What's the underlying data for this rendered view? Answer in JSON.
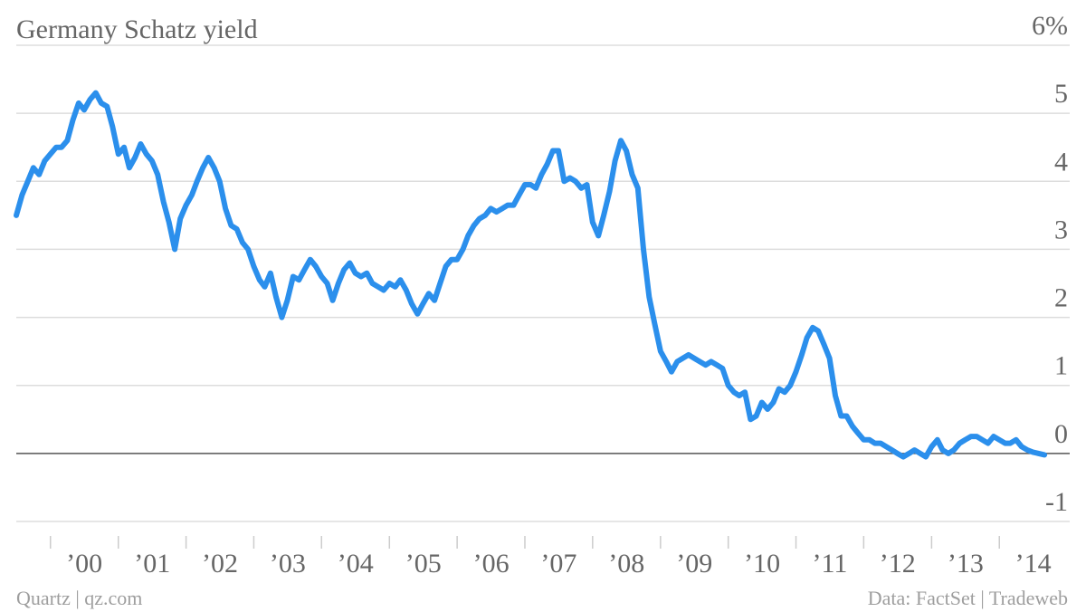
{
  "chart_data": {
    "type": "line",
    "title": "Germany Schatz yield",
    "y_unit_label": "6%",
    "y_ticks": [
      {
        "value": 6,
        "label": "6%"
      },
      {
        "value": 5,
        "label": "5"
      },
      {
        "value": 4,
        "label": "4"
      },
      {
        "value": 3,
        "label": "3"
      },
      {
        "value": 2,
        "label": "2"
      },
      {
        "value": 1,
        "label": "1"
      },
      {
        "value": 0,
        "label": "0"
      },
      {
        "value": -1,
        "label": "-1"
      }
    ],
    "ylim": [
      -1,
      6
    ],
    "xlim": [
      "1999-07-01",
      "2014-09-30"
    ],
    "x_ticks": [
      {
        "date": "2000-01-01",
        "label": "’00"
      },
      {
        "date": "2001-01-01",
        "label": "’01"
      },
      {
        "date": "2002-01-01",
        "label": "’02"
      },
      {
        "date": "2003-01-01",
        "label": "’03"
      },
      {
        "date": "2004-01-01",
        "label": "’04"
      },
      {
        "date": "2005-01-01",
        "label": "’05"
      },
      {
        "date": "2006-01-01",
        "label": "’06"
      },
      {
        "date": "2007-01-01",
        "label": "’07"
      },
      {
        "date": "2008-01-01",
        "label": "’08"
      },
      {
        "date": "2009-01-01",
        "label": "’09"
      },
      {
        "date": "2010-01-01",
        "label": "’10"
      },
      {
        "date": "2011-01-01",
        "label": "’11"
      },
      {
        "date": "2012-01-01",
        "label": "’12"
      },
      {
        "date": "2013-01-01",
        "label": "’13"
      },
      {
        "date": "2014-01-01",
        "label": "’14"
      }
    ],
    "grid": true,
    "series": [
      {
        "color": "#2b8fec",
        "points": [
          [
            "1999-07-01",
            3.5
          ],
          [
            "1999-08-01",
            3.8
          ],
          [
            "1999-09-01",
            4.0
          ],
          [
            "1999-10-01",
            4.2
          ],
          [
            "1999-11-01",
            4.1
          ],
          [
            "1999-12-01",
            4.3
          ],
          [
            "2000-01-01",
            4.4
          ],
          [
            "2000-02-01",
            4.5
          ],
          [
            "2000-03-01",
            4.5
          ],
          [
            "2000-04-01",
            4.6
          ],
          [
            "2000-05-01",
            4.9
          ],
          [
            "2000-06-01",
            5.15
          ],
          [
            "2000-07-01",
            5.05
          ],
          [
            "2000-08-01",
            5.2
          ],
          [
            "2000-09-01",
            5.3
          ],
          [
            "2000-10-01",
            5.15
          ],
          [
            "2000-11-01",
            5.1
          ],
          [
            "2000-12-01",
            4.8
          ],
          [
            "2001-01-01",
            4.4
          ],
          [
            "2001-02-01",
            4.5
          ],
          [
            "2001-03-01",
            4.2
          ],
          [
            "2001-04-01",
            4.35
          ],
          [
            "2001-05-01",
            4.55
          ],
          [
            "2001-06-01",
            4.4
          ],
          [
            "2001-07-01",
            4.3
          ],
          [
            "2001-08-01",
            4.1
          ],
          [
            "2001-09-01",
            3.7
          ],
          [
            "2001-10-01",
            3.4
          ],
          [
            "2001-11-01",
            3.0
          ],
          [
            "2001-12-01",
            3.45
          ],
          [
            "2002-01-01",
            3.65
          ],
          [
            "2002-02-01",
            3.8
          ],
          [
            "2002-03-01",
            4.0
          ],
          [
            "2002-04-01",
            4.2
          ],
          [
            "2002-05-01",
            4.35
          ],
          [
            "2002-06-01",
            4.2
          ],
          [
            "2002-07-01",
            4.0
          ],
          [
            "2002-08-01",
            3.6
          ],
          [
            "2002-09-01",
            3.35
          ],
          [
            "2002-10-01",
            3.3
          ],
          [
            "2002-11-01",
            3.1
          ],
          [
            "2002-12-01",
            3.0
          ],
          [
            "2003-01-01",
            2.75
          ],
          [
            "2003-02-01",
            2.55
          ],
          [
            "2003-03-01",
            2.45
          ],
          [
            "2003-04-01",
            2.65
          ],
          [
            "2003-05-01",
            2.3
          ],
          [
            "2003-06-01",
            2.0
          ],
          [
            "2003-07-01",
            2.25
          ],
          [
            "2003-08-01",
            2.6
          ],
          [
            "2003-09-01",
            2.55
          ],
          [
            "2003-10-01",
            2.7
          ],
          [
            "2003-11-01",
            2.85
          ],
          [
            "2003-12-01",
            2.75
          ],
          [
            "2004-01-01",
            2.6
          ],
          [
            "2004-02-01",
            2.5
          ],
          [
            "2004-03-01",
            2.25
          ],
          [
            "2004-04-01",
            2.5
          ],
          [
            "2004-05-01",
            2.7
          ],
          [
            "2004-06-01",
            2.8
          ],
          [
            "2004-07-01",
            2.65
          ],
          [
            "2004-08-01",
            2.6
          ],
          [
            "2004-09-01",
            2.65
          ],
          [
            "2004-10-01",
            2.5
          ],
          [
            "2004-11-01",
            2.45
          ],
          [
            "2004-12-01",
            2.4
          ],
          [
            "2005-01-01",
            2.5
          ],
          [
            "2005-02-01",
            2.45
          ],
          [
            "2005-03-01",
            2.55
          ],
          [
            "2005-04-01",
            2.4
          ],
          [
            "2005-05-01",
            2.2
          ],
          [
            "2005-06-01",
            2.05
          ],
          [
            "2005-07-01",
            2.2
          ],
          [
            "2005-08-01",
            2.35
          ],
          [
            "2005-09-01",
            2.25
          ],
          [
            "2005-10-01",
            2.5
          ],
          [
            "2005-11-01",
            2.75
          ],
          [
            "2005-12-01",
            2.85
          ],
          [
            "2006-01-01",
            2.85
          ],
          [
            "2006-02-01",
            3.0
          ],
          [
            "2006-03-01",
            3.2
          ],
          [
            "2006-04-01",
            3.35
          ],
          [
            "2006-05-01",
            3.45
          ],
          [
            "2006-06-01",
            3.5
          ],
          [
            "2006-07-01",
            3.6
          ],
          [
            "2006-08-01",
            3.55
          ],
          [
            "2006-09-01",
            3.6
          ],
          [
            "2006-10-01",
            3.65
          ],
          [
            "2006-11-01",
            3.65
          ],
          [
            "2006-12-01",
            3.8
          ],
          [
            "2007-01-01",
            3.95
          ],
          [
            "2007-02-01",
            3.95
          ],
          [
            "2007-03-01",
            3.9
          ],
          [
            "2007-04-01",
            4.1
          ],
          [
            "2007-05-01",
            4.25
          ],
          [
            "2007-06-01",
            4.45
          ],
          [
            "2007-07-01",
            4.45
          ],
          [
            "2007-08-01",
            4.0
          ],
          [
            "2007-09-01",
            4.05
          ],
          [
            "2007-10-01",
            4.0
          ],
          [
            "2007-11-01",
            3.9
          ],
          [
            "2007-12-01",
            3.95
          ],
          [
            "2008-01-01",
            3.4
          ],
          [
            "2008-02-01",
            3.2
          ],
          [
            "2008-03-01",
            3.5
          ],
          [
            "2008-04-01",
            3.85
          ],
          [
            "2008-05-01",
            4.3
          ],
          [
            "2008-06-01",
            4.6
          ],
          [
            "2008-07-01",
            4.45
          ],
          [
            "2008-08-01",
            4.1
          ],
          [
            "2008-09-01",
            3.9
          ],
          [
            "2008-10-01",
            3.0
          ],
          [
            "2008-11-01",
            2.3
          ],
          [
            "2008-12-01",
            1.9
          ],
          [
            "2009-01-01",
            1.5
          ],
          [
            "2009-02-01",
            1.35
          ],
          [
            "2009-03-01",
            1.2
          ],
          [
            "2009-04-01",
            1.35
          ],
          [
            "2009-05-01",
            1.4
          ],
          [
            "2009-06-01",
            1.45
          ],
          [
            "2009-07-01",
            1.4
          ],
          [
            "2009-08-01",
            1.35
          ],
          [
            "2009-09-01",
            1.3
          ],
          [
            "2009-10-01",
            1.35
          ],
          [
            "2009-11-01",
            1.3
          ],
          [
            "2009-12-01",
            1.25
          ],
          [
            "2010-01-01",
            1.0
          ],
          [
            "2010-02-01",
            0.9
          ],
          [
            "2010-03-01",
            0.85
          ],
          [
            "2010-04-01",
            0.9
          ],
          [
            "2010-05-01",
            0.5
          ],
          [
            "2010-06-01",
            0.55
          ],
          [
            "2010-07-01",
            0.75
          ],
          [
            "2010-08-01",
            0.65
          ],
          [
            "2010-09-01",
            0.75
          ],
          [
            "2010-10-01",
            0.95
          ],
          [
            "2010-11-01",
            0.9
          ],
          [
            "2010-12-01",
            1.0
          ],
          [
            "2011-01-01",
            1.2
          ],
          [
            "2011-02-01",
            1.45
          ],
          [
            "2011-03-01",
            1.7
          ],
          [
            "2011-04-01",
            1.85
          ],
          [
            "2011-05-01",
            1.8
          ],
          [
            "2011-06-01",
            1.6
          ],
          [
            "2011-07-01",
            1.4
          ],
          [
            "2011-08-01",
            0.85
          ],
          [
            "2011-09-01",
            0.55
          ],
          [
            "2011-10-01",
            0.55
          ],
          [
            "2011-11-01",
            0.4
          ],
          [
            "2011-12-01",
            0.3
          ],
          [
            "2012-01-01",
            0.2
          ],
          [
            "2012-02-01",
            0.2
          ],
          [
            "2012-03-01",
            0.15
          ],
          [
            "2012-04-01",
            0.15
          ],
          [
            "2012-05-01",
            0.1
          ],
          [
            "2012-06-01",
            0.05
          ],
          [
            "2012-07-01",
            0.0
          ],
          [
            "2012-08-01",
            -0.05
          ],
          [
            "2012-09-01",
            0.0
          ],
          [
            "2012-10-01",
            0.05
          ],
          [
            "2012-11-01",
            0.0
          ],
          [
            "2012-12-01",
            -0.05
          ],
          [
            "2013-01-01",
            0.1
          ],
          [
            "2013-02-01",
            0.2
          ],
          [
            "2013-03-01",
            0.05
          ],
          [
            "2013-04-01",
            0.0
          ],
          [
            "2013-05-01",
            0.05
          ],
          [
            "2013-06-01",
            0.15
          ],
          [
            "2013-07-01",
            0.2
          ],
          [
            "2013-08-01",
            0.25
          ],
          [
            "2013-09-01",
            0.25
          ],
          [
            "2013-10-01",
            0.2
          ],
          [
            "2013-11-01",
            0.15
          ],
          [
            "2013-12-01",
            0.25
          ],
          [
            "2014-01-01",
            0.2
          ],
          [
            "2014-02-01",
            0.15
          ],
          [
            "2014-03-01",
            0.15
          ],
          [
            "2014-04-01",
            0.2
          ],
          [
            "2014-05-01",
            0.1
          ],
          [
            "2014-06-01",
            0.05
          ],
          [
            "2014-07-01",
            0.02
          ],
          [
            "2014-08-01",
            0.0
          ],
          [
            "2014-09-01",
            -0.02
          ]
        ]
      }
    ],
    "footer_left": "Quartz | qz.com",
    "footer_right": "Data: FactSet | Tradeweb"
  }
}
